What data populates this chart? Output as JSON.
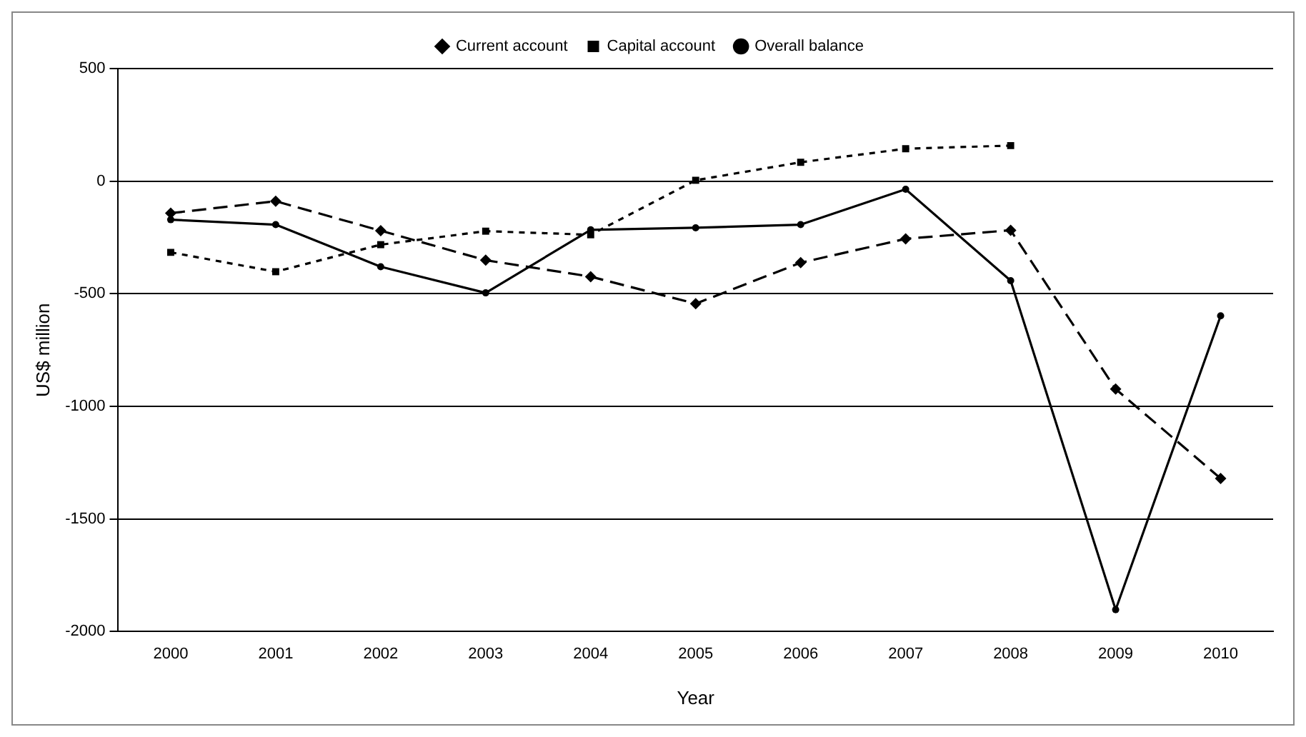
{
  "chart_data": {
    "type": "line",
    "xlabel": "Year",
    "ylabel": "US$ million",
    "categories": [
      "2000",
      "2001",
      "2002",
      "2003",
      "2004",
      "2005",
      "2006",
      "2007",
      "2008",
      "2009",
      "2010"
    ],
    "series": [
      {
        "name": "Current account",
        "color": "#000000",
        "marker": "diamond",
        "line_style": "dashed",
        "values": [
          -142,
          -89,
          -220,
          -351,
          -424,
          -544,
          -362,
          -256,
          -218,
          -923,
          -1320
        ]
      },
      {
        "name": "Capital account",
        "color": "#000000",
        "marker": "square",
        "line_style": "dotted",
        "values": [
          -316,
          -402,
          -282,
          -222,
          -238,
          4,
          84,
          144,
          158,
          null,
          null
        ]
      },
      {
        "name": "Overall balance",
        "color": "#000000",
        "marker": "circle",
        "line_style": "solid",
        "values": [
          -171,
          -193,
          -380,
          -496,
          -216,
          -207,
          -193,
          -36,
          -442,
          -1903,
          -598
        ]
      }
    ],
    "ylim": [
      -2000,
      500
    ],
    "yticks": [
      -2000,
      -1500,
      -1000,
      -500,
      0,
      500
    ],
    "grid": "y",
    "legend": "top"
  }
}
